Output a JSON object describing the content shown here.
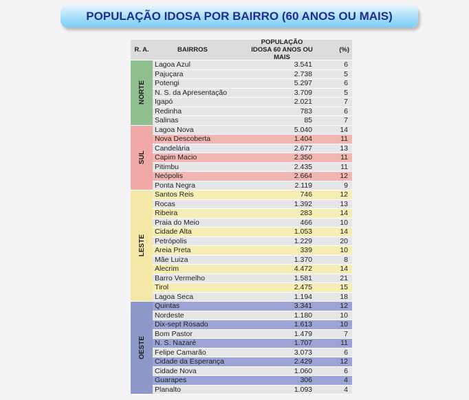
{
  "title": "POPULAÇÃO IDOSA POR BAIRRO (60 ANOS OU MAIS)",
  "table": {
    "headers": [
      "R. A.",
      "BAIRROS",
      "POPULAÇÃO IDOSA 60 ANOS OU MAIS",
      "(%)"
    ],
    "regions": [
      {
        "name": "NORTE",
        "color": "#8fbf8f",
        "highlight_color": "#e6e6e8",
        "highlight": [],
        "rows": [
          [
            "Lagoa Azul",
            "3.541",
            "6"
          ],
          [
            "Pajuçara",
            "2.738",
            "5"
          ],
          [
            "Potengi",
            "5.297",
            "6"
          ],
          [
            "N. S. da Apresentação",
            "3.709",
            "5"
          ],
          [
            "Igapó",
            "2.021",
            "7"
          ],
          [
            "Redinha",
            "783",
            "6"
          ],
          [
            "Salinas",
            "85",
            "7"
          ]
        ]
      },
      {
        "name": "SUL",
        "color": "#f0a9a6",
        "highlight_color": "#f2b6b2",
        "highlight": [
          1,
          3,
          5
        ],
        "rows": [
          [
            "Lagoa Nova",
            "5.040",
            "14"
          ],
          [
            "Nova Descoberta",
            "1.404",
            "11"
          ],
          [
            "Candelária",
            "2.677",
            "13"
          ],
          [
            "Capim Macio",
            "2.350",
            "11"
          ],
          [
            "Pitimbu",
            "2.435",
            "11"
          ],
          [
            "Neópolis",
            "2.664",
            "12"
          ],
          [
            "Ponta Negra",
            "2.119",
            "9"
          ]
        ]
      },
      {
        "name": "LESTE",
        "color": "#f5e7a6",
        "highlight_color": "#f6edb4",
        "highlight": [
          0,
          2,
          4,
          6,
          8,
          10
        ],
        "rows": [
          [
            "Santos Reis",
            "746",
            "12"
          ],
          [
            "Rocas",
            "1.392",
            "13"
          ],
          [
            "Ribeira",
            "283",
            "14"
          ],
          [
            "Praia do Meio",
            "466",
            "10"
          ],
          [
            "Cidade Alta",
            "1.053",
            "14"
          ],
          [
            "Petrópolis",
            "1.229",
            "20"
          ],
          [
            "Areia Preta",
            "339",
            "10"
          ],
          [
            "Mãe Luiza",
            "1.370",
            "8"
          ],
          [
            "Alecrim",
            "4.472",
            "14"
          ],
          [
            "Barro Vermelho",
            "1.581",
            "21"
          ],
          [
            "Tirol",
            "2.475",
            "15"
          ],
          [
            "Lagoa Seca",
            "1.194",
            "18"
          ]
        ]
      },
      {
        "name": "OESTE",
        "color": "#8d97c8",
        "highlight_color": "#9ba4d4",
        "highlight": [
          0,
          2,
          4,
          6,
          8
        ],
        "rows": [
          [
            "Quintas",
            "3.341",
            "12"
          ],
          [
            "Nordeste",
            "1.180",
            "10"
          ],
          [
            "Dix-sept Rosado",
            "1.613",
            "10"
          ],
          [
            "Bom Pastor",
            "1.479",
            "7"
          ],
          [
            "N. S. Nazaré",
            "1.707",
            "11"
          ],
          [
            "Felipe Camarão",
            "3.073",
            "6"
          ],
          [
            "Cidade da Esperança",
            "2.429",
            "12"
          ],
          [
            "Cidade Nova",
            "1.060",
            "6"
          ],
          [
            "Guarapes",
            "306",
            "4"
          ],
          [
            "Planalto",
            "1.093",
            "4"
          ]
        ]
      }
    ]
  }
}
